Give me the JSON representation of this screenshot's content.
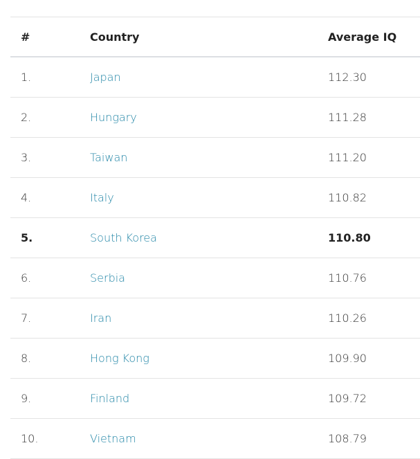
{
  "table": {
    "headers": [
      "#",
      "Country",
      "Average IQ"
    ],
    "rows": [
      {
        "rank": "1.",
        "country": "Japan",
        "iq": "112.30"
      },
      {
        "rank": "2.",
        "country": "Hungary",
        "iq": "111.28"
      },
      {
        "rank": "3.",
        "country": "Taiwan",
        "iq": "111.20"
      },
      {
        "rank": "4.",
        "country": "Italy",
        "iq": "110.82"
      },
      {
        "rank": "5.",
        "country": "South Korea",
        "iq": "110.80",
        "highlighted": true
      },
      {
        "rank": "6.",
        "country": "Serbia",
        "iq": "110.76"
      },
      {
        "rank": "7.",
        "country": "Iran",
        "iq": "110.26"
      },
      {
        "rank": "8.",
        "country": "Hong Kong",
        "iq": "109.90"
      },
      {
        "rank": "9.",
        "country": "Finland",
        "iq": "109.72"
      },
      {
        "rank": "10.",
        "country": "Vietnam",
        "iq": "108.79"
      }
    ]
  },
  "colors": {
    "link": "#2185a6",
    "text": "#333333"
  }
}
